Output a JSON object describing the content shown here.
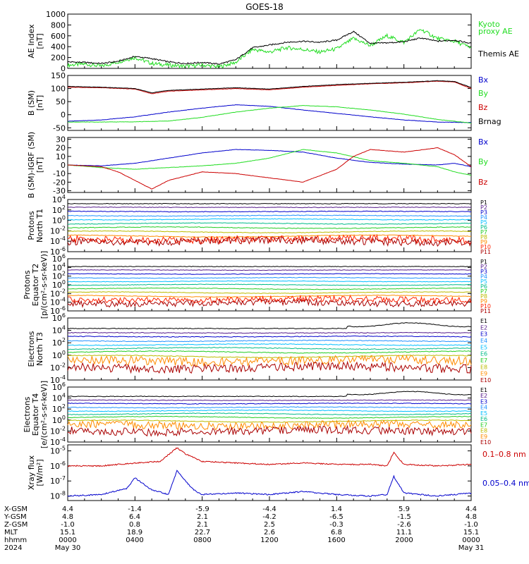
{
  "title": "GOES-18",
  "colors": {
    "black": "#000000",
    "green": "#22dd22",
    "blue": "#0000cc",
    "red": "#cc0000",
    "p1": "#000000",
    "p2": "#551a8b",
    "p3": "#0000cc",
    "p4": "#1e90ff",
    "p5": "#00bfff",
    "p6": "#00bb88",
    "p7": "#22cc22",
    "p8": "#bbbb00",
    "p9": "#ff8c00",
    "p10": "#ff2200",
    "p11": "#aa0000"
  },
  "chart_data": [
    {
      "type": "line",
      "id": "ae",
      "ylabel": [
        "AE Index",
        "[nT]"
      ],
      "ylim": [
        0,
        1000
      ],
      "yticks": [
        0,
        200,
        400,
        600,
        800,
        1000
      ],
      "series": [
        {
          "name": "Kyoto proxy AE",
          "label_lines": [
            "Kyoto",
            "proxy AE"
          ],
          "color": "#22dd22",
          "x": [
            0,
            1,
            2,
            3,
            4,
            5,
            6,
            7,
            8,
            9,
            10,
            11,
            12,
            13,
            14,
            15,
            16,
            17,
            18,
            19,
            20,
            21,
            22,
            23,
            24
          ],
          "y": [
            60,
            80,
            40,
            120,
            200,
            90,
            60,
            40,
            60,
            30,
            110,
            350,
            300,
            380,
            350,
            300,
            360,
            550,
            420,
            600,
            480,
            720,
            550,
            500,
            380
          ]
        },
        {
          "name": "Themis AE",
          "label_lines": [
            "Themis AE"
          ],
          "color": "#000000",
          "x": [
            0,
            1,
            2,
            3,
            4,
            5,
            6,
            7,
            8,
            9,
            10,
            11,
            12,
            13,
            14,
            15,
            16,
            17,
            18,
            19,
            20,
            21,
            22,
            23,
            24
          ],
          "y": [
            120,
            110,
            90,
            130,
            220,
            180,
            120,
            90,
            110,
            80,
            160,
            380,
            430,
            480,
            500,
            480,
            520,
            680,
            460,
            470,
            490,
            560,
            500,
            520,
            460
          ]
        }
      ]
    },
    {
      "type": "line",
      "id": "bsm",
      "ylabel": [
        "B (SM)",
        "[nT]"
      ],
      "ylim": [
        -60,
        150
      ],
      "yticks": [
        -50,
        0,
        50,
        100,
        150
      ],
      "series": [
        {
          "name": "Bx",
          "label_lines": [
            "Bx"
          ],
          "color": "#0000cc",
          "x": [
            0,
            2,
            4,
            6,
            8,
            10,
            12,
            14,
            16,
            18,
            20,
            22,
            24
          ],
          "y": [
            -25,
            -20,
            -8,
            10,
            25,
            38,
            32,
            18,
            5,
            -8,
            -20,
            -28,
            -30
          ]
        },
        {
          "name": "By",
          "label_lines": [
            "By"
          ],
          "color": "#22dd22",
          "x": [
            0,
            2,
            4,
            6,
            8,
            10,
            12,
            14,
            16,
            18,
            20,
            22,
            24
          ],
          "y": [
            -28,
            -28,
            -27,
            -24,
            -10,
            10,
            25,
            35,
            30,
            18,
            2,
            -18,
            -32
          ]
        },
        {
          "name": "Bz",
          "label_lines": [
            "Bz"
          ],
          "color": "#cc0000",
          "x": [
            0,
            2,
            4,
            5,
            6,
            8,
            10,
            12,
            14,
            16,
            18,
            20,
            22,
            23,
            24
          ],
          "y": [
            105,
            103,
            98,
            80,
            90,
            95,
            100,
            95,
            105,
            112,
            118,
            122,
            128,
            125,
            100
          ]
        },
        {
          "name": "Brnag",
          "label_lines": [
            "Brnag"
          ],
          "color": "#000000",
          "x": [
            0,
            2,
            4,
            5,
            6,
            8,
            10,
            12,
            14,
            16,
            18,
            20,
            22,
            23,
            24
          ],
          "y": [
            108,
            105,
            100,
            84,
            93,
            98,
            103,
            98,
            108,
            115,
            120,
            124,
            130,
            127,
            104
          ]
        }
      ]
    },
    {
      "type": "line",
      "id": "bigrf",
      "ylabel": [
        "B (SM)-IGRF (SM)",
        "[nT]"
      ],
      "ylim": [
        -32,
        32
      ],
      "yticks": [
        -30,
        -20,
        -10,
        0,
        10,
        20,
        30
      ],
      "series": [
        {
          "name": "Bx",
          "label_lines": [
            "Bx"
          ],
          "color": "#0000cc",
          "x": [
            0,
            2,
            4,
            6,
            8,
            10,
            12,
            14,
            16,
            18,
            20,
            22,
            23,
            24
          ],
          "y": [
            0,
            -1,
            2,
            8,
            14,
            18,
            17,
            15,
            8,
            3,
            1,
            0,
            2,
            -2
          ]
        },
        {
          "name": "By",
          "label_lines": [
            "By"
          ],
          "color": "#22dd22",
          "x": [
            0,
            2,
            4,
            6,
            8,
            10,
            12,
            14,
            16,
            18,
            20,
            22,
            23,
            24
          ],
          "y": [
            0,
            -3,
            -5,
            -3,
            -1,
            2,
            8,
            18,
            14,
            5,
            2,
            -2,
            -8,
            -12
          ]
        },
        {
          "name": "Bz",
          "label_lines": [
            "Bz"
          ],
          "color": "#cc0000",
          "x": [
            0,
            2,
            3,
            4,
            5,
            6,
            8,
            10,
            12,
            14,
            16,
            17,
            18,
            20,
            22,
            23,
            24
          ],
          "y": [
            0,
            -2,
            -8,
            -18,
            -28,
            -18,
            -8,
            -10,
            -15,
            -20,
            -5,
            10,
            18,
            15,
            20,
            12,
            -2
          ]
        }
      ]
    },
    {
      "type": "line",
      "id": "pn",
      "ylabel": [
        "Protons",
        "North T1"
      ],
      "log": true,
      "ylim": [
        -6,
        4
      ],
      "yticks": [
        4,
        2,
        0,
        -2,
        -4,
        -6
      ],
      "channels": [
        {
          "name": "P1",
          "base": 3.2,
          "color": "#000000"
        },
        {
          "name": "P2",
          "base": 2.5,
          "color": "#551a8b"
        },
        {
          "name": "P3",
          "base": 1.7,
          "color": "#0000cc"
        },
        {
          "name": "P4",
          "base": 0.9,
          "color": "#1e90ff"
        },
        {
          "name": "P5",
          "base": 0.2,
          "color": "#00bfff"
        },
        {
          "name": "P6",
          "base": -0.6,
          "color": "#00bb88"
        },
        {
          "name": "P7",
          "base": -1.4,
          "color": "#22cc22"
        },
        {
          "name": "P8",
          "base": -2.2,
          "color": "#bbbb00"
        },
        {
          "name": "P9",
          "base": -3.0,
          "color": "#ff8c00"
        },
        {
          "name": "P10",
          "base": -3.6,
          "color": "#ff2200"
        },
        {
          "name": "P11",
          "base": -4.0,
          "color": "#aa0000"
        }
      ]
    },
    {
      "type": "line",
      "id": "pe",
      "ylabel": [
        "Protons",
        "Equator T2",
        "[p/(cm²-s-sr-keV)]"
      ],
      "log": true,
      "ylim": [
        -6,
        6
      ],
      "yticks": [
        6,
        4,
        2,
        0,
        -2,
        -4,
        -6
      ],
      "channels": [
        {
          "name": "P1",
          "base": 4.2,
          "color": "#000000"
        },
        {
          "name": "P2",
          "base": 3.4,
          "color": "#551a8b"
        },
        {
          "name": "P3",
          "base": 2.5,
          "color": "#0000cc"
        },
        {
          "name": "P4",
          "base": 1.6,
          "color": "#1e90ff"
        },
        {
          "name": "P5",
          "base": 0.8,
          "color": "#00bfff"
        },
        {
          "name": "P6",
          "base": 0.0,
          "color": "#00bb88"
        },
        {
          "name": "P7",
          "base": -0.9,
          "color": "#22cc22"
        },
        {
          "name": "P8",
          "base": -1.8,
          "color": "#bbbb00"
        },
        {
          "name": "P9",
          "base": -2.6,
          "color": "#ff8c00"
        },
        {
          "name": "P10",
          "base": -3.4,
          "color": "#ff2200"
        },
        {
          "name": "P11",
          "base": -4.2,
          "color": "#aa0000"
        }
      ]
    },
    {
      "type": "line",
      "id": "en",
      "ylabel": [
        "Electrons",
        "North T3"
      ],
      "log": true,
      "ylim": [
        -4,
        6
      ],
      "yticks": [
        6,
        4,
        2,
        0,
        -2,
        -4
      ],
      "channels": [
        {
          "name": "E1",
          "base": 4.3,
          "color": "#000000"
        },
        {
          "name": "E2",
          "base": 3.6,
          "color": "#551a8b"
        },
        {
          "name": "E3",
          "base": 3.0,
          "color": "#0000cc"
        },
        {
          "name": "E4",
          "base": 2.3,
          "color": "#1e90ff"
        },
        {
          "name": "E5",
          "base": 1.7,
          "color": "#00bfff"
        },
        {
          "name": "E6",
          "base": 1.1,
          "color": "#00bb88"
        },
        {
          "name": "E7",
          "base": 0.5,
          "color": "#22cc22"
        },
        {
          "name": "E8",
          "base": -0.2,
          "color": "#bbbb00"
        },
        {
          "name": "E9",
          "base": -0.9,
          "color": "#ff8c00"
        },
        {
          "name": "E10",
          "base": -2.0,
          "color": "#aa0000"
        }
      ]
    },
    {
      "type": "line",
      "id": "ee",
      "ylabel": [
        "Electrons",
        "Equator T4",
        "[e/(cm²-s-sr-keV)]"
      ],
      "log": true,
      "ylim": [
        -4,
        6
      ],
      "yticks": [
        6,
        4,
        2,
        0,
        -2,
        -4
      ],
      "channels": [
        {
          "name": "E1",
          "base": 4.3,
          "color": "#000000"
        },
        {
          "name": "E2",
          "base": 3.6,
          "color": "#551a8b"
        },
        {
          "name": "E3",
          "base": 3.0,
          "color": "#0000cc"
        },
        {
          "name": "E4",
          "base": 2.3,
          "color": "#1e90ff"
        },
        {
          "name": "E5",
          "base": 1.7,
          "color": "#00bfff"
        },
        {
          "name": "E6",
          "base": 1.1,
          "color": "#00bb88"
        },
        {
          "name": "E7",
          "base": 0.5,
          "color": "#22cc22"
        },
        {
          "name": "E8",
          "base": -0.2,
          "color": "#bbbb00"
        },
        {
          "name": "E9",
          "base": -0.9,
          "color": "#ff8c00"
        },
        {
          "name": "E10",
          "base": -2.0,
          "color": "#aa0000"
        }
      ]
    },
    {
      "type": "line",
      "id": "xray",
      "ylabel": [
        "Xray flux",
        "[W/m²]"
      ],
      "log": true,
      "ylim": [
        -8.3,
        -4.6
      ],
      "yticks": [
        -5,
        -6,
        -7,
        -8
      ],
      "series": [
        {
          "name": "0.1-0.8 nm",
          "label_lines": [
            "0.1–0.8 nm"
          ],
          "color": "#cc0000",
          "x": [
            0,
            2,
            4,
            5.5,
            6.5,
            7,
            8,
            10,
            12,
            14,
            16,
            18,
            19,
            19.4,
            20,
            22,
            24
          ],
          "y": [
            -6.0,
            -6.0,
            -5.8,
            -5.7,
            -4.8,
            -5.2,
            -5.7,
            -5.8,
            -5.9,
            -5.8,
            -5.9,
            -5.9,
            -6.0,
            -5.1,
            -5.9,
            -6.0,
            -5.9
          ]
        },
        {
          "name": "0.05-0.4 nm",
          "label_lines": [
            "0.05–0.4 nm"
          ],
          "color": "#0000cc",
          "x": [
            0,
            2,
            3.5,
            4,
            5,
            6,
            6.5,
            7,
            7.5,
            8,
            10,
            12,
            14,
            16,
            18,
            19,
            19.4,
            20,
            22,
            24
          ],
          "y": [
            -8.0,
            -7.9,
            -7.5,
            -6.8,
            -7.6,
            -7.9,
            -6.3,
            -7.0,
            -7.6,
            -7.9,
            -7.8,
            -7.9,
            -7.7,
            -7.9,
            -8.0,
            -7.9,
            -6.7,
            -7.8,
            -8.0,
            -7.8
          ]
        }
      ]
    }
  ],
  "ephemeris": {
    "rows": [
      {
        "label": "X-GSM",
        "values": [
          "4.4",
          "-1.4",
          "-5.9",
          "-4.4",
          "1.4",
          "5.9",
          "4.4"
        ]
      },
      {
        "label": "Y-GSM",
        "values": [
          "4.8",
          "6.4",
          "2.1",
          "-4.2",
          "-6.5",
          "-1.5",
          "4.8"
        ]
      },
      {
        "label": "Z-GSM",
        "values": [
          "-1.0",
          "0.8",
          "2.1",
          "2.5",
          "-0.3",
          "-2.6",
          "-1.0"
        ]
      },
      {
        "label": "MLT",
        "values": [
          "15.1",
          "18.9",
          "22.7",
          "2.6",
          "6.8",
          "11.1",
          "15.1"
        ]
      },
      {
        "label": "hhmm",
        "values": [
          "0000",
          "0400",
          "0800",
          "1200",
          "1600",
          "2000",
          "0000"
        ]
      },
      {
        "label": "2024",
        "values": [
          "May 30",
          "",
          "",
          "",
          "",
          "",
          "May 31"
        ]
      }
    ]
  }
}
